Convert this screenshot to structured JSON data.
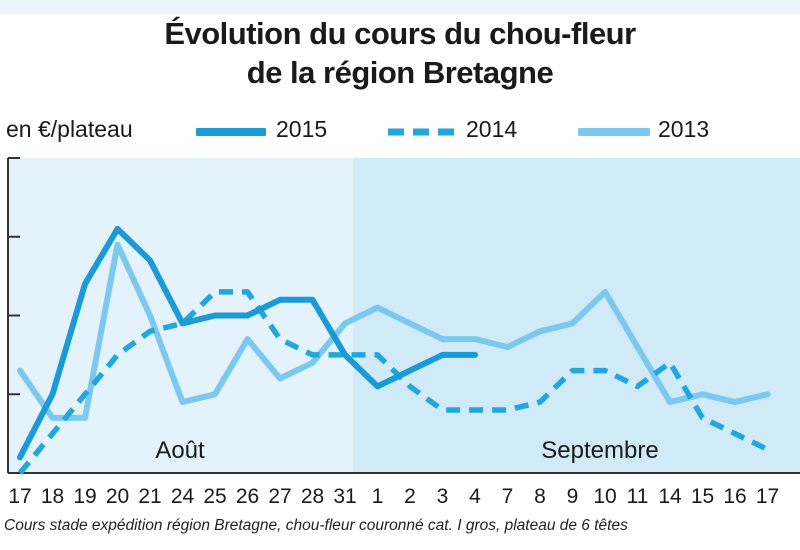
{
  "chart_data": {
    "type": "line",
    "title_line1": "Évolution du cours du chou-fleur",
    "title_line2": "de la région Bretagne",
    "ylabel": "en €/plateau",
    "ylim": [
      0,
      4
    ],
    "grid": false,
    "legend_position": "top",
    "months": [
      "Août",
      "Septembre"
    ],
    "categories": [
      "17",
      "18",
      "19",
      "20",
      "21",
      "24",
      "25",
      "26",
      "27",
      "28",
      "31",
      "1",
      "2",
      "3",
      "4",
      "7",
      "8",
      "9",
      "10",
      "11",
      "14",
      "15",
      "16",
      "17"
    ],
    "series": [
      {
        "name": "2015",
        "style": "solid-thick",
        "color": "#1a9ad6",
        "values": [
          0.2,
          1.0,
          2.4,
          3.1,
          2.7,
          1.9,
          2.0,
          2.0,
          2.2,
          2.2,
          1.5,
          1.1,
          1.3,
          1.5,
          1.5,
          null,
          null,
          null,
          null,
          null,
          null,
          null,
          null,
          null
        ]
      },
      {
        "name": "2014",
        "style": "dashed",
        "color": "#22a6de",
        "values": [
          0.0,
          0.5,
          1.0,
          1.5,
          1.8,
          1.9,
          2.3,
          2.3,
          1.7,
          1.5,
          1.5,
          1.5,
          1.1,
          0.8,
          0.8,
          0.8,
          0.9,
          1.3,
          1.3,
          1.1,
          1.4,
          0.7,
          0.5,
          0.3
        ]
      },
      {
        "name": "2013",
        "style": "solid-light",
        "color": "#7cc8ee",
        "values": [
          1.3,
          0.7,
          0.7,
          2.9,
          2.0,
          0.9,
          1.0,
          1.7,
          1.2,
          1.4,
          1.9,
          2.1,
          1.9,
          1.7,
          1.7,
          1.6,
          1.8,
          1.9,
          2.3,
          1.6,
          0.9,
          1.0,
          0.9,
          1.0
        ]
      }
    ]
  },
  "footnote": "Cours stade expédition région Bretagne, chou-fleur couronné cat. I gros, plateau de 6 têtes",
  "colors": {
    "panel_left": "#e3f2fb",
    "panel_right": "#d1eaf8",
    "axis": "#333333"
  }
}
